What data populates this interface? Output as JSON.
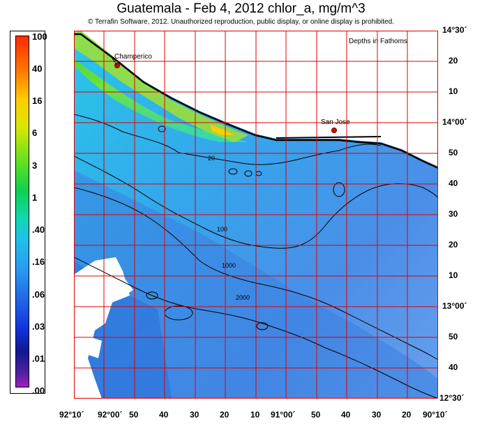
{
  "title": "Guatemala - Feb 4, 2012  chlor_a, mg/m^3",
  "copyright": "© Terrafin Software,  2012.  Unauthorized reproduction, public display, or online display is prohibited.",
  "legend_note": "Depths in Fathoms",
  "colorbar": {
    "labels": [
      "100",
      "40",
      "16",
      "6",
      "3",
      "1",
      ".40",
      ".16",
      ".06",
      ".03",
      ".01",
      ".00"
    ]
  },
  "places": [
    {
      "name": "Champerico"
    },
    {
      "name": "San Jose"
    }
  ],
  "depth_contours": [
    "20",
    "100",
    "1000",
    "2000"
  ],
  "longitude_labels": [
    "92°10´",
    "92°00´",
    "50",
    "40",
    "30",
    "20",
    "10",
    "91°00´",
    "50",
    "40",
    "30",
    "20",
    "90°10´"
  ],
  "latitude_labels": [
    "14°30´",
    "20",
    "10",
    "14°00´",
    "50",
    "40",
    "30",
    "20",
    "10",
    "13°00´",
    "50",
    "40",
    "12°30´"
  ],
  "colors": {
    "grid": "#e00000",
    "land": "#ffffff",
    "contour": "#000000",
    "marker": "#e00000"
  }
}
